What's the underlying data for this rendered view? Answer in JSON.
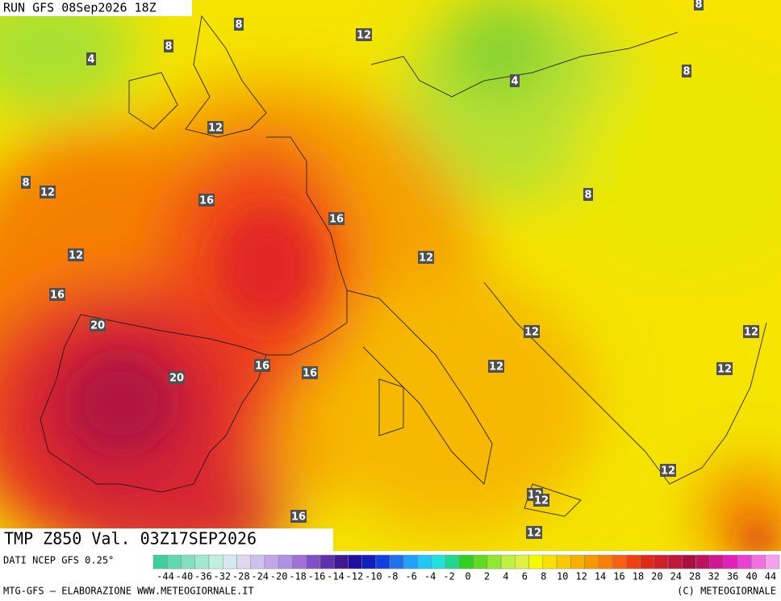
{
  "header": {
    "run": "RUN GFS 08Sep2026 18Z",
    "field": "TMP Z850 Val. 03Z17SEP2026"
  },
  "contour_labels": [
    "4",
    "8",
    "8",
    "12",
    "4",
    "8",
    "8",
    "12",
    "8",
    "12",
    "16",
    "16",
    "8",
    "12",
    "12",
    "16",
    "20",
    "12",
    "12",
    "16",
    "16",
    "12",
    "12",
    "20",
    "12",
    "12",
    "12",
    "16",
    "12"
  ],
  "colorbar": {
    "ticks": [
      -44,
      -40,
      -36,
      -32,
      -28,
      -24,
      -20,
      -18,
      -16,
      -14,
      -12,
      -10,
      -8,
      -6,
      -4,
      -2,
      0,
      2,
      4,
      6,
      8,
      10,
      12,
      14,
      16,
      18,
      20,
      24,
      28,
      32,
      36,
      40,
      44
    ],
    "colors": [
      "#3fcf9f",
      "#5fd8b0",
      "#80e0c0",
      "#a0e8d0",
      "#c0f0e0",
      "#d8e8f0",
      "#e0d8f0",
      "#d0c0f0",
      "#c0a8e8",
      "#b090e0",
      "#a070d8",
      "#8050c8",
      "#6030b0",
      "#401890",
      "#2010a0",
      "#1020c0",
      "#1040e0",
      "#2070f0",
      "#20a0f8",
      "#20c8f8",
      "#20e0e0",
      "#20d890",
      "#30d020",
      "#60dc20",
      "#90e830",
      "#c0f040",
      "#e0f040",
      "#f8f800",
      "#f8e000",
      "#f8c800",
      "#f8b000",
      "#f89800",
      "#f88000",
      "#f86010",
      "#f04010",
      "#e02818",
      "#d02028",
      "#c01838",
      "#a81040",
      "#c01060",
      "#d01890",
      "#e020b8",
      "#e840d0",
      "#f070e0",
      "#f8a0f0"
    ]
  },
  "footer": {
    "source": "DATI NCEP GFS 0.25°",
    "credit": "MTG-GFS – ELABORAZIONE WWW.METEOGIORNALE.IT",
    "copyright": "(C) METEOGIORNALE"
  }
}
